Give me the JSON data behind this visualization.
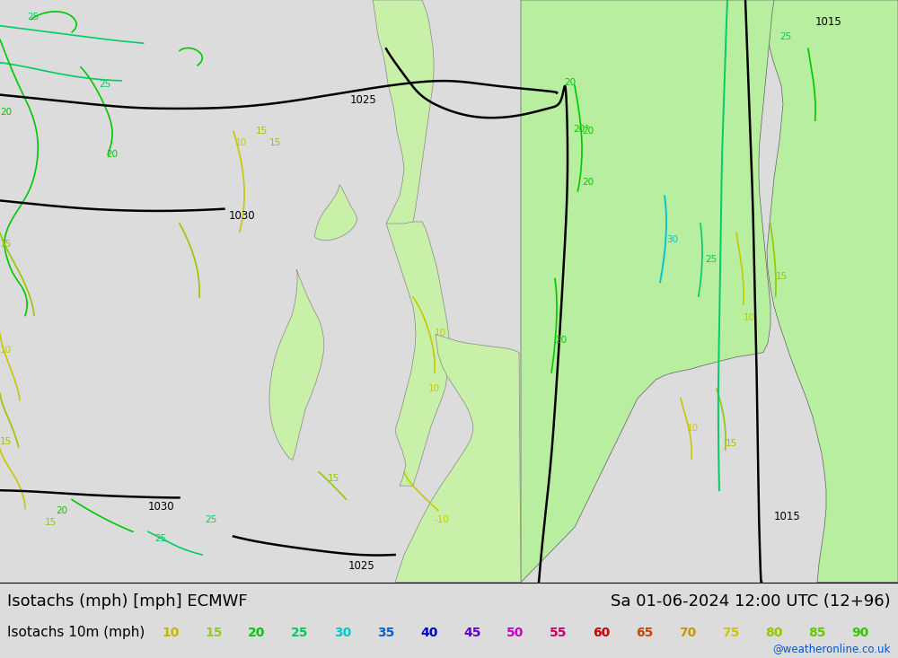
{
  "title_left": "Isotachs (mph) [mph] ECMWF",
  "title_right": "Sa 01-06-2024 12:00 UTC (12+96)",
  "legend_label": "Isotachs 10m (mph)",
  "legend_values": [
    "10",
    "15",
    "20",
    "25",
    "30",
    "35",
    "40",
    "45",
    "50",
    "55",
    "60",
    "65",
    "70",
    "75",
    "80",
    "85",
    "90"
  ],
  "legend_colors": [
    "#c8b400",
    "#96c800",
    "#00c800",
    "#00c864",
    "#00c8c8",
    "#0064c8",
    "#0000c8",
    "#6400c8",
    "#c800c8",
    "#c80064",
    "#c80000",
    "#c84800",
    "#c89600",
    "#c8c800",
    "#96c800",
    "#64c800",
    "#32c800"
  ],
  "watermark": "@weatheronline.co.uk",
  "map_bg": "#dcdcdc",
  "land_green_light": "#c8f0a0",
  "land_green_bright": "#a0e878",
  "bottom_bg": "#ffffff",
  "title_fontsize": 13,
  "legend_fontsize": 10
}
